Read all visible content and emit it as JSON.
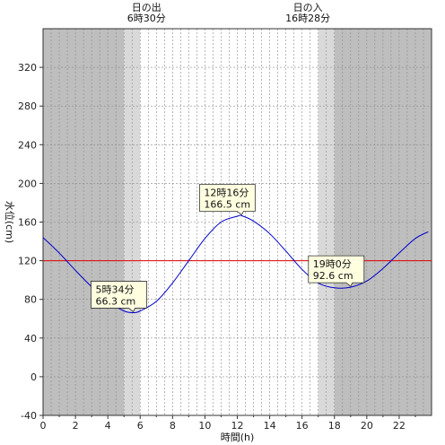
{
  "chart_data": {
    "type": "line",
    "xlabel": "時間(h)",
    "ylabel": "水位(cm)",
    "xlim": [
      0,
      24
    ],
    "ylim": [
      -40,
      360
    ],
    "x_ticks": [
      0,
      2,
      4,
      6,
      8,
      10,
      12,
      14,
      16,
      18,
      20,
      22
    ],
    "y_ticks": [
      -40,
      0,
      40,
      80,
      120,
      160,
      200,
      240,
      280,
      320
    ],
    "grid": true,
    "reference_line": {
      "y": 120,
      "color": "#e00000"
    },
    "series": [
      {
        "color": "#0000cc",
        "x": [
          0,
          1,
          2,
          3,
          4,
          5,
          5.57,
          6,
          7,
          8,
          9,
          10,
          11,
          12,
          12.27,
          13,
          14,
          15,
          16,
          17,
          18,
          19,
          20,
          21,
          22,
          23,
          23.8
        ],
        "y": [
          144,
          128,
          110,
          93,
          78,
          68,
          66.3,
          68,
          78,
          97,
          120,
          143,
          160,
          166,
          166.5,
          161,
          148,
          130,
          111,
          97,
          92,
          92.6,
          99,
          112,
          128,
          143,
          150
        ]
      }
    ],
    "annotations": [
      {
        "time": "5時34分",
        "value": "66.3 cm",
        "x": 5.57,
        "y": 66.3
      },
      {
        "time": "12時16分",
        "value": "166.5 cm",
        "x": 12.27,
        "y": 166.5
      },
      {
        "time": "19時0分",
        "value": "92.6 cm",
        "x": 19.0,
        "y": 92.6
      }
    ],
    "sunrise": {
      "label": "日の出",
      "time": "6時30分",
      "x": 6.5
    },
    "sunset": {
      "label": "日の入",
      "time": "16時28分",
      "x": 16.47
    },
    "shading": {
      "night_color": "#bebebe",
      "twilight_color": "#d9d9d9",
      "bands": [
        {
          "from": 0,
          "to": 5.0,
          "kind": "night"
        },
        {
          "from": 5.0,
          "to": 6.0,
          "kind": "twilight"
        },
        {
          "from": 17.0,
          "to": 18.0,
          "kind": "twilight"
        },
        {
          "from": 18.0,
          "to": 24,
          "kind": "night"
        }
      ]
    }
  }
}
